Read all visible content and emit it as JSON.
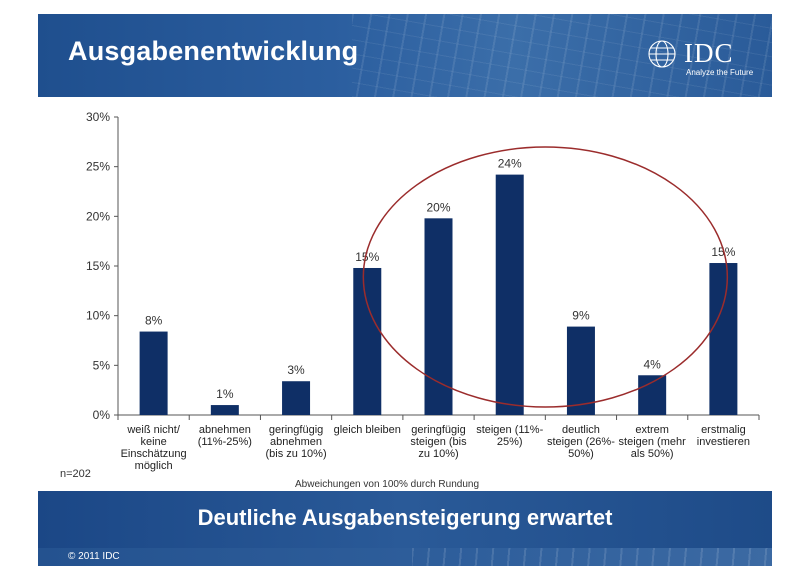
{
  "header": {
    "title": "Ausgabenentwicklung"
  },
  "logo": {
    "word": "IDC",
    "tagline": "Analyze the Future"
  },
  "notes": {
    "sample": "n=202",
    "rounding": "Abweichungen von 100% durch Rundung"
  },
  "banner": {
    "text": "Deutliche Ausgabensteigerung erwartet"
  },
  "footer": {
    "copyright": "© 2011 IDC"
  },
  "colors": {
    "bar": "#0f2f66",
    "highlight_ellipse": "#9b2c2c",
    "axis": "#555555"
  },
  "chart_data": {
    "type": "bar",
    "title": "",
    "xlabel": "",
    "ylabel": "",
    "ylim": [
      0,
      30
    ],
    "yticks": [
      "0%",
      "5%",
      "10%",
      "15%",
      "20%",
      "25%",
      "30%"
    ],
    "categories": [
      [
        "weiß nicht/",
        "keine",
        "Einschätzung",
        "möglich"
      ],
      [
        "abnehmen",
        "(11%-25%)"
      ],
      [
        "geringfügig",
        "abnehmen",
        "(bis zu 10%)"
      ],
      [
        "gleich bleiben"
      ],
      [
        "geringfügig",
        "steigen (bis",
        "zu 10%)"
      ],
      [
        "steigen (11%-",
        "25%)"
      ],
      [
        "deutlich",
        "steigen (26%-",
        "50%)"
      ],
      [
        "extrem",
        "steigen (mehr",
        "als 50%)"
      ],
      [
        "erstmalig",
        "investieren"
      ]
    ],
    "values": [
      8.4,
      1.0,
      3.4,
      14.8,
      19.8,
      24.2,
      8.9,
      4.0,
      15.3
    ],
    "labels": [
      "8%",
      "1%",
      "3%",
      "15%",
      "20%",
      "24%",
      "9%",
      "4%",
      "15%"
    ],
    "grid": false,
    "legend": "none"
  }
}
